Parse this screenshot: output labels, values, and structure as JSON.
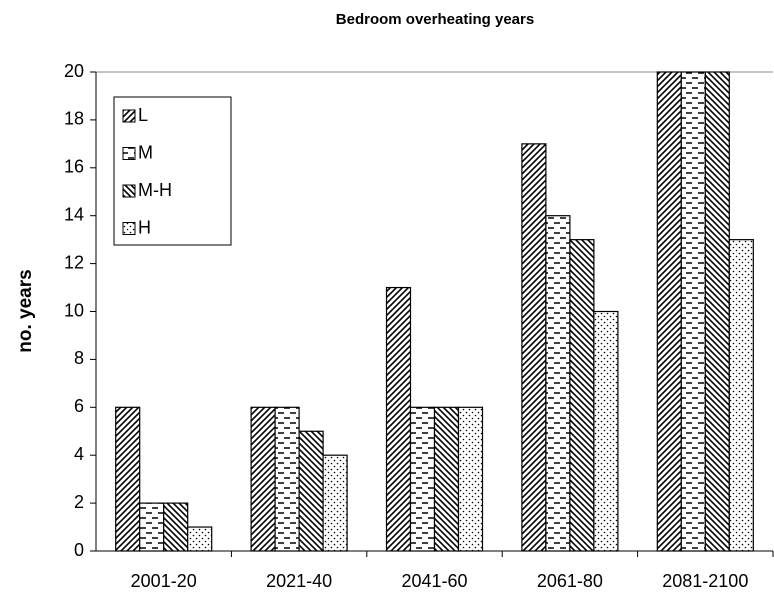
{
  "chart_data": {
    "type": "bar",
    "title": "Bedroom overheating years",
    "y_label": "no. years",
    "categories": [
      "2001-20",
      "2021-40",
      "2041-60",
      "2061-80",
      "2081-2100"
    ],
    "series": [
      {
        "name": "L",
        "color": "#000000",
        "pattern": "diagonal-up",
        "values": [
          6,
          6,
          11,
          17,
          20
        ]
      },
      {
        "name": "M",
        "color": "#000000",
        "pattern": "dashes",
        "values": [
          2,
          6,
          6,
          14,
          20
        ]
      },
      {
        "name": "M-H",
        "color": "#000000",
        "pattern": "diagonal-down",
        "values": [
          2,
          5,
          6,
          13,
          20
        ]
      },
      {
        "name": "H",
        "color": "#000000",
        "pattern": "dots",
        "values": [
          1,
          4,
          6,
          10,
          13
        ]
      }
    ],
    "ylim": [
      0,
      20
    ],
    "yticks": [
      0,
      2,
      4,
      6,
      8,
      10,
      12,
      14,
      16,
      18,
      20
    ],
    "legend": "top-left"
  }
}
